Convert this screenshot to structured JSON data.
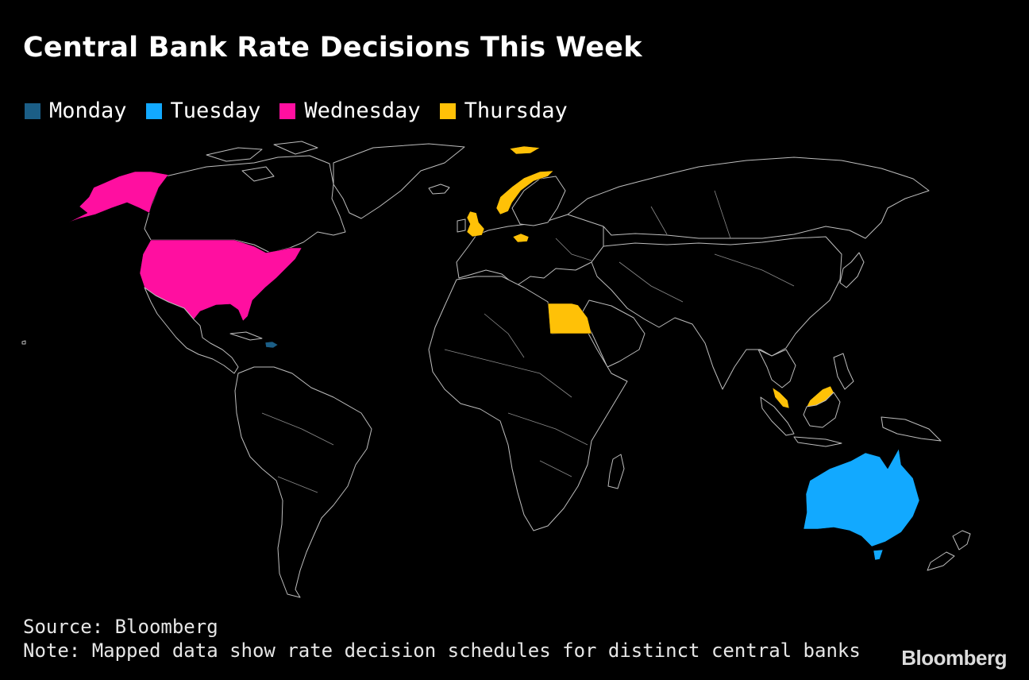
{
  "title": "Central Bank Rate Decisions This Week",
  "legend": [
    {
      "label": "Monday",
      "color": "#1b5e86"
    },
    {
      "label": "Tuesday",
      "color": "#12a9ff"
    },
    {
      "label": "Wednesday",
      "color": "#ff0fa0"
    },
    {
      "label": "Thursday",
      "color": "#ffc107"
    }
  ],
  "map": {
    "highlighted": [
      {
        "country": "Dominican Republic",
        "day": "Monday",
        "color": "#1b5e86"
      },
      {
        "country": "Australia",
        "day": "Tuesday",
        "color": "#12a9ff"
      },
      {
        "country": "United States",
        "day": "Wednesday",
        "color": "#ff0fa0"
      },
      {
        "country": "United Kingdom",
        "day": "Thursday",
        "color": "#ffc107"
      },
      {
        "country": "Norway",
        "day": "Thursday",
        "color": "#ffc107"
      },
      {
        "country": "Czech Republic",
        "day": "Thursday",
        "color": "#ffc107"
      },
      {
        "country": "Egypt",
        "day": "Thursday",
        "color": "#ffc107"
      },
      {
        "country": "Malaysia",
        "day": "Thursday",
        "color": "#ffc107"
      }
    ]
  },
  "footer": {
    "source": "Source: Bloomberg",
    "note": "Note: Mapped data show rate decision schedules for distinct central banks"
  },
  "brand": "Bloomberg"
}
